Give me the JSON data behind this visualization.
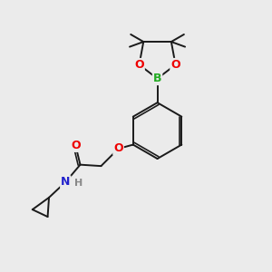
{
  "bg_color": "#ebebeb",
  "bond_color": "#1a1a1a",
  "bond_width": 1.4,
  "atom_colors": {
    "O": "#ee0000",
    "N": "#2222cc",
    "B": "#22aa22",
    "H": "#888888",
    "C": "#1a1a1a"
  },
  "font_size": 9,
  "font_size_h": 8
}
